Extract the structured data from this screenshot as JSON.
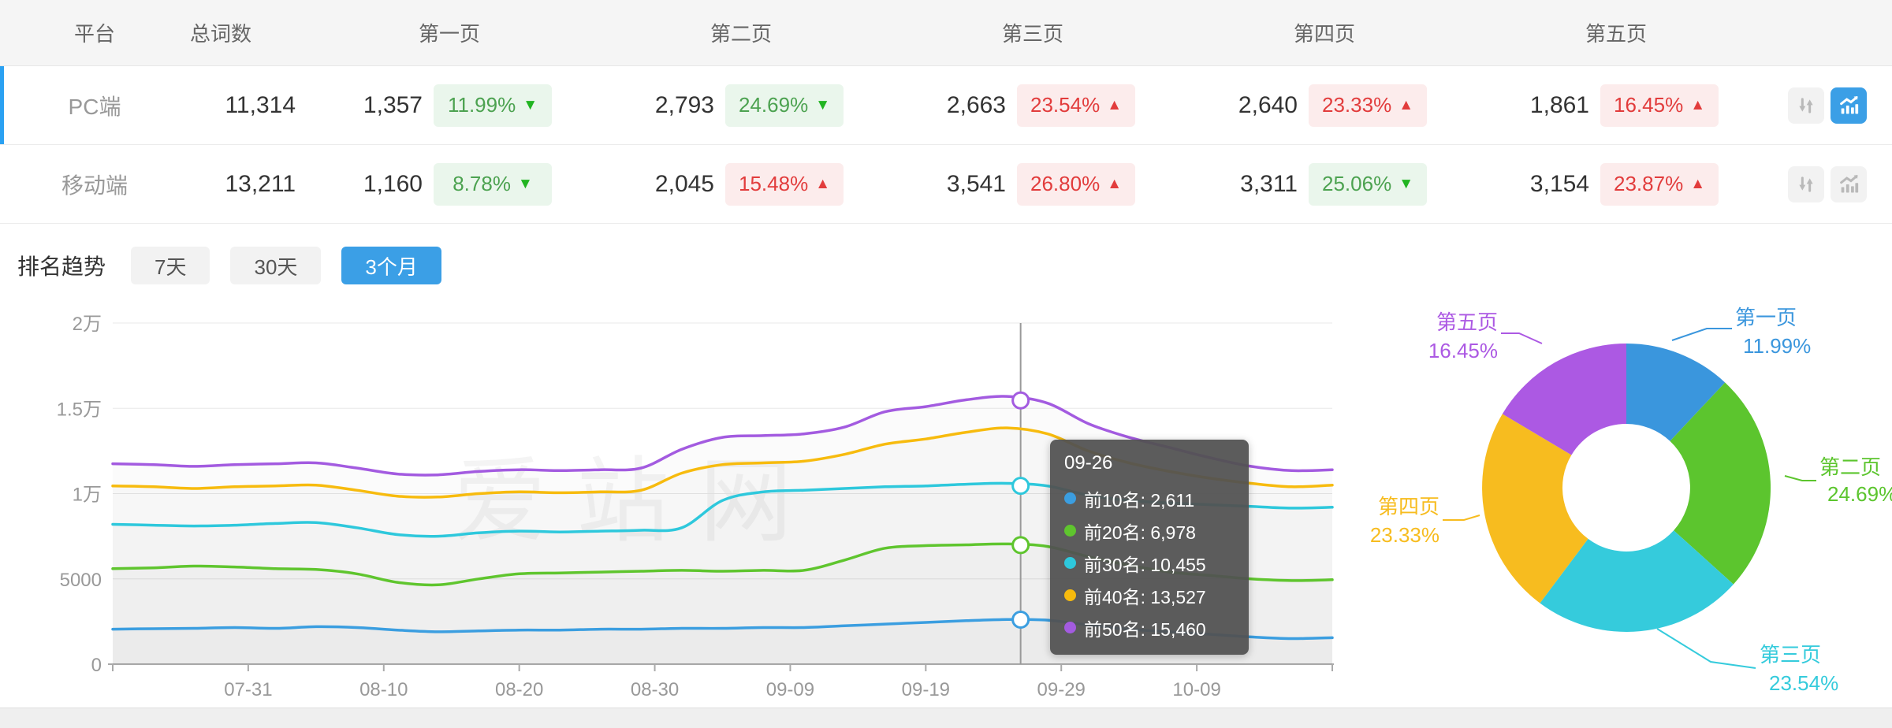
{
  "watermark": "爱站网",
  "table": {
    "headers": {
      "platform": "平台",
      "total": "总词数",
      "page1": "第一页",
      "page2": "第二页",
      "page3": "第三页",
      "page4": "第四页",
      "page5": "第五页"
    },
    "rows": [
      {
        "platform": "PC端",
        "total": "11,314",
        "selected": true,
        "chart_button_active": true,
        "pages": [
          {
            "count": "1,357",
            "pct": "11.99%",
            "dir": "down"
          },
          {
            "count": "2,793",
            "pct": "24.69%",
            "dir": "down"
          },
          {
            "count": "2,663",
            "pct": "23.54%",
            "dir": "up"
          },
          {
            "count": "2,640",
            "pct": "23.33%",
            "dir": "up"
          },
          {
            "count": "1,861",
            "pct": "16.45%",
            "dir": "up"
          }
        ]
      },
      {
        "platform": "移动端",
        "total": "13,211",
        "selected": false,
        "chart_button_active": false,
        "pages": [
          {
            "count": "1,160",
            "pct": "8.78%",
            "dir": "down"
          },
          {
            "count": "2,045",
            "pct": "15.48%",
            "dir": "up"
          },
          {
            "count": "3,541",
            "pct": "26.80%",
            "dir": "up"
          },
          {
            "count": "3,311",
            "pct": "25.06%",
            "dir": "down"
          },
          {
            "count": "3,154",
            "pct": "23.87%",
            "dir": "up"
          }
        ]
      }
    ]
  },
  "trend": {
    "title": "排名趋势",
    "tabs": [
      {
        "label": "7天",
        "active": false
      },
      {
        "label": "30天",
        "active": false
      },
      {
        "label": "3个月",
        "active": true
      }
    ]
  },
  "colors": {
    "accent_blue": "#3b9fe6",
    "up_red": "#e23c3c",
    "down_green": "#4ca250",
    "badge_green_bg": "#eaf6ec",
    "badge_red_bg": "#fcecec"
  },
  "chart_data": [
    {
      "type": "line",
      "title": "排名趋势 3个月",
      "ylim": [
        0,
        20000
      ],
      "grid": true,
      "x_range_days": [
        0,
        90
      ],
      "sample_step_days": 3,
      "x_ticks": [
        {
          "day": 10,
          "label": "07-31"
        },
        {
          "day": 20,
          "label": "08-10"
        },
        {
          "day": 30,
          "label": "08-20"
        },
        {
          "day": 40,
          "label": "08-30"
        },
        {
          "day": 50,
          "label": "09-09"
        },
        {
          "day": 60,
          "label": "09-19"
        },
        {
          "day": 70,
          "label": "09-29"
        },
        {
          "day": 80,
          "label": "10-09"
        }
      ],
      "y_ticks": [
        {
          "value": 0,
          "label": "0"
        },
        {
          "value": 5000,
          "label": "5000"
        },
        {
          "value": 10000,
          "label": "1万"
        },
        {
          "value": 15000,
          "label": "1.5万"
        },
        {
          "value": 20000,
          "label": "2万"
        }
      ],
      "series": [
        {
          "name": "前10名",
          "color": "#3b9ee0",
          "values": [
            2050,
            2080,
            2100,
            2150,
            2100,
            2200,
            2150,
            2000,
            1900,
            1950,
            2000,
            2000,
            2050,
            2050,
            2100,
            2100,
            2150,
            2150,
            2250,
            2350,
            2450,
            2550,
            2620,
            2580,
            2300,
            2050,
            1900,
            1750,
            1600,
            1500,
            1550
          ]
        },
        {
          "name": "前20名",
          "color": "#5fc52e",
          "values": [
            5600,
            5650,
            5750,
            5700,
            5600,
            5550,
            5300,
            4800,
            4650,
            5000,
            5300,
            5350,
            5400,
            5450,
            5500,
            5450,
            5500,
            5500,
            6100,
            6800,
            6950,
            7000,
            7050,
            6900,
            6300,
            5800,
            5400,
            5200,
            5000,
            4900,
            4950
          ]
        },
        {
          "name": "前30名",
          "color": "#2ec8dc",
          "values": [
            8200,
            8150,
            8100,
            8150,
            8250,
            8300,
            8000,
            7600,
            7500,
            7700,
            7800,
            7750,
            7800,
            7850,
            8000,
            9600,
            10100,
            10200,
            10300,
            10400,
            10450,
            10550,
            10600,
            10450,
            9900,
            9600,
            9450,
            9350,
            9250,
            9150,
            9200
          ]
        },
        {
          "name": "前40名",
          "color": "#f7bb0e",
          "values": [
            10450,
            10400,
            10300,
            10400,
            10450,
            10500,
            10200,
            9850,
            9800,
            10000,
            10100,
            10050,
            10100,
            10200,
            11200,
            11700,
            11800,
            11900,
            12300,
            12900,
            13200,
            13600,
            13850,
            13500,
            12500,
            11800,
            11300,
            10900,
            10600,
            10400,
            10500
          ]
        },
        {
          "name": "前50名",
          "color": "#a35be0",
          "values": [
            11750,
            11700,
            11600,
            11700,
            11750,
            11800,
            11500,
            11150,
            11100,
            11300,
            11400,
            11350,
            11400,
            11500,
            12600,
            13300,
            13400,
            13500,
            13900,
            14800,
            15100,
            15500,
            15700,
            15300,
            14100,
            13300,
            12700,
            12100,
            11600,
            11350,
            11400
          ]
        }
      ],
      "tooltip": {
        "date": "09-26",
        "day": 67,
        "items": [
          {
            "series": "前10名",
            "value": 2611,
            "display": "2,611"
          },
          {
            "series": "前20名",
            "value": 6978,
            "display": "6,978"
          },
          {
            "series": "前30名",
            "value": 10455,
            "display": "10,455"
          },
          {
            "series": "前40名",
            "value": 13527,
            "display": "13,527"
          },
          {
            "series": "前50名",
            "value": 15460,
            "display": "15,460"
          }
        ],
        "markers": [
          "前10名",
          "前20名",
          "前30名",
          "前50名"
        ]
      }
    },
    {
      "type": "donut",
      "start": "top",
      "clockwise": true,
      "slices": [
        {
          "label": "第一页",
          "pct": 11.99,
          "display": "11.99%",
          "color": "#3a96dd"
        },
        {
          "label": "第二页",
          "pct": 24.69,
          "display": "24.69%",
          "color": "#5cc52e"
        },
        {
          "label": "第三页",
          "pct": 23.54,
          "display": "23.54%",
          "color": "#35cbdc"
        },
        {
          "label": "第四页",
          "pct": 23.33,
          "display": "23.33%",
          "color": "#f7bc1f"
        },
        {
          "label": "第五页",
          "pct": 16.45,
          "display": "16.45%",
          "color": "#ac59e3"
        }
      ]
    }
  ]
}
